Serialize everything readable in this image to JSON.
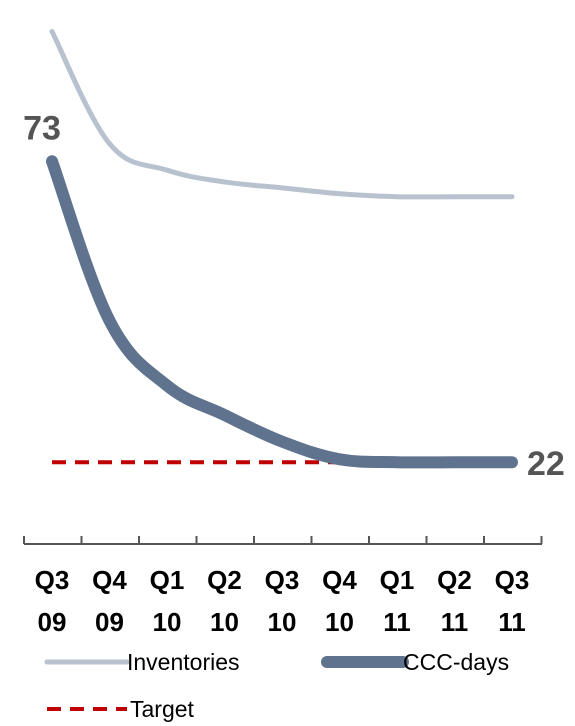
{
  "chart_data": {
    "type": "line",
    "categories": [
      [
        "Q3",
        "09"
      ],
      [
        "Q4",
        "09"
      ],
      [
        "Q1",
        "10"
      ],
      [
        "Q2",
        "10"
      ],
      [
        "Q3",
        "10"
      ],
      [
        "Q4",
        "10"
      ],
      [
        "Q1",
        "11"
      ],
      [
        "Q2",
        "11"
      ],
      [
        "Q3",
        "11"
      ]
    ],
    "series": [
      {
        "name": "Inventories",
        "color": "#b8c2cf",
        "values": [
          95,
          76,
          71.5,
          69.5,
          68.5,
          67.5,
          67,
          67,
          67
        ]
      },
      {
        "name": "CCC-days",
        "color": "#60738e",
        "values": [
          73,
          46,
          35,
          30,
          25.5,
          22.5,
          22,
          22,
          22
        ]
      },
      {
        "name": "Target",
        "color": "#c00000",
        "values": [
          22,
          22,
          22,
          22,
          22,
          22,
          22,
          22,
          22
        ]
      }
    ],
    "data_labels": [
      {
        "series": "CCC-days",
        "index": 0,
        "text": "73"
      },
      {
        "series": "CCC-days",
        "index": 8,
        "text": "22"
      }
    ],
    "ylim": [
      0,
      100
    ],
    "grid": false,
    "legend": "bottom",
    "title": "",
    "xlabel": "",
    "ylabel": ""
  }
}
